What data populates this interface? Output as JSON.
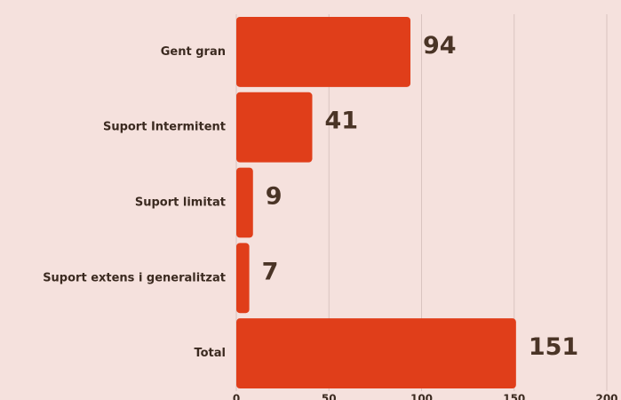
{
  "chart_data": {
    "type": "barh",
    "categories": [
      "Gent gran",
      "Suport Intermitent",
      "Suport limitat",
      "Suport extens i generalitzat",
      "Total"
    ],
    "values": [
      94,
      41,
      9,
      7,
      151
    ],
    "color": "#e03e1a",
    "xlim": [
      0,
      200
    ],
    "xticks": [
      0,
      50,
      100,
      150,
      200
    ],
    "grid": true
  }
}
